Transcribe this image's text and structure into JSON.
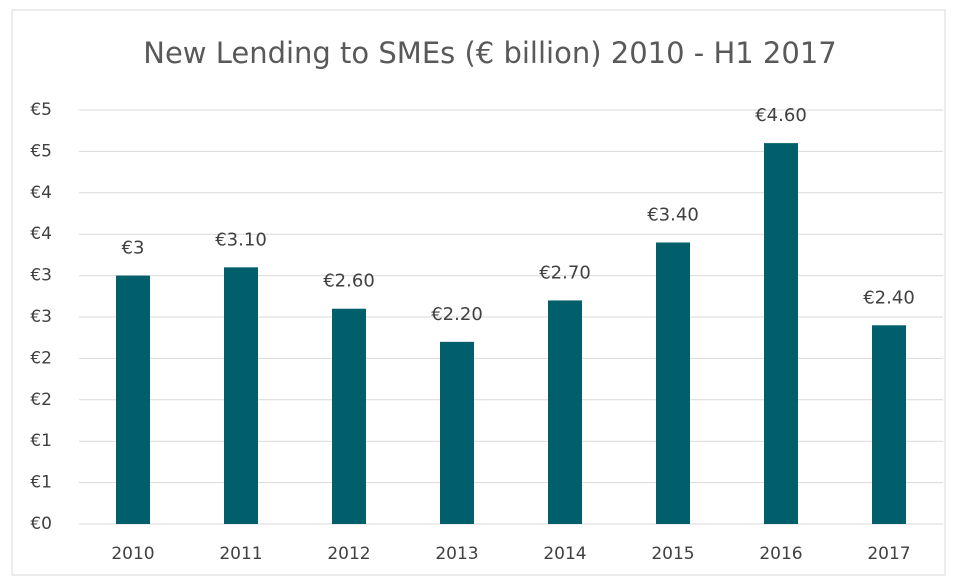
{
  "chart_data": {
    "type": "bar",
    "title": "New Lending to SMEs (€ billion) 2010 - H1 2017",
    "categories": [
      "2010",
      "2011",
      "2012",
      "2013",
      "2014",
      "2015",
      "2016",
      "2017"
    ],
    "values": [
      3,
      3.1,
      2.6,
      2.2,
      2.7,
      3.4,
      4.6,
      2.4
    ],
    "value_labels": [
      "€3",
      "€3.10",
      "€2.60",
      "€2.20",
      "€2.70",
      "€3.40",
      "€4.60",
      "€2.40"
    ],
    "color": "#005f6b",
    "ylim": [
      0,
      5
    ],
    "yticks": [
      {
        "value": 0,
        "label": "€0"
      },
      {
        "value": 0.5,
        "label": "€1"
      },
      {
        "value": 1,
        "label": "€1"
      },
      {
        "value": 1.5,
        "label": "€2"
      },
      {
        "value": 2,
        "label": "€2"
      },
      {
        "value": 2.5,
        "label": "€3"
      },
      {
        "value": 3,
        "label": "€3"
      },
      {
        "value": 3.5,
        "label": "€4"
      },
      {
        "value": 4,
        "label": "€4"
      },
      {
        "value": 4.5,
        "label": "€5"
      },
      {
        "value": 5,
        "label": "€5"
      }
    ],
    "grid": true
  }
}
